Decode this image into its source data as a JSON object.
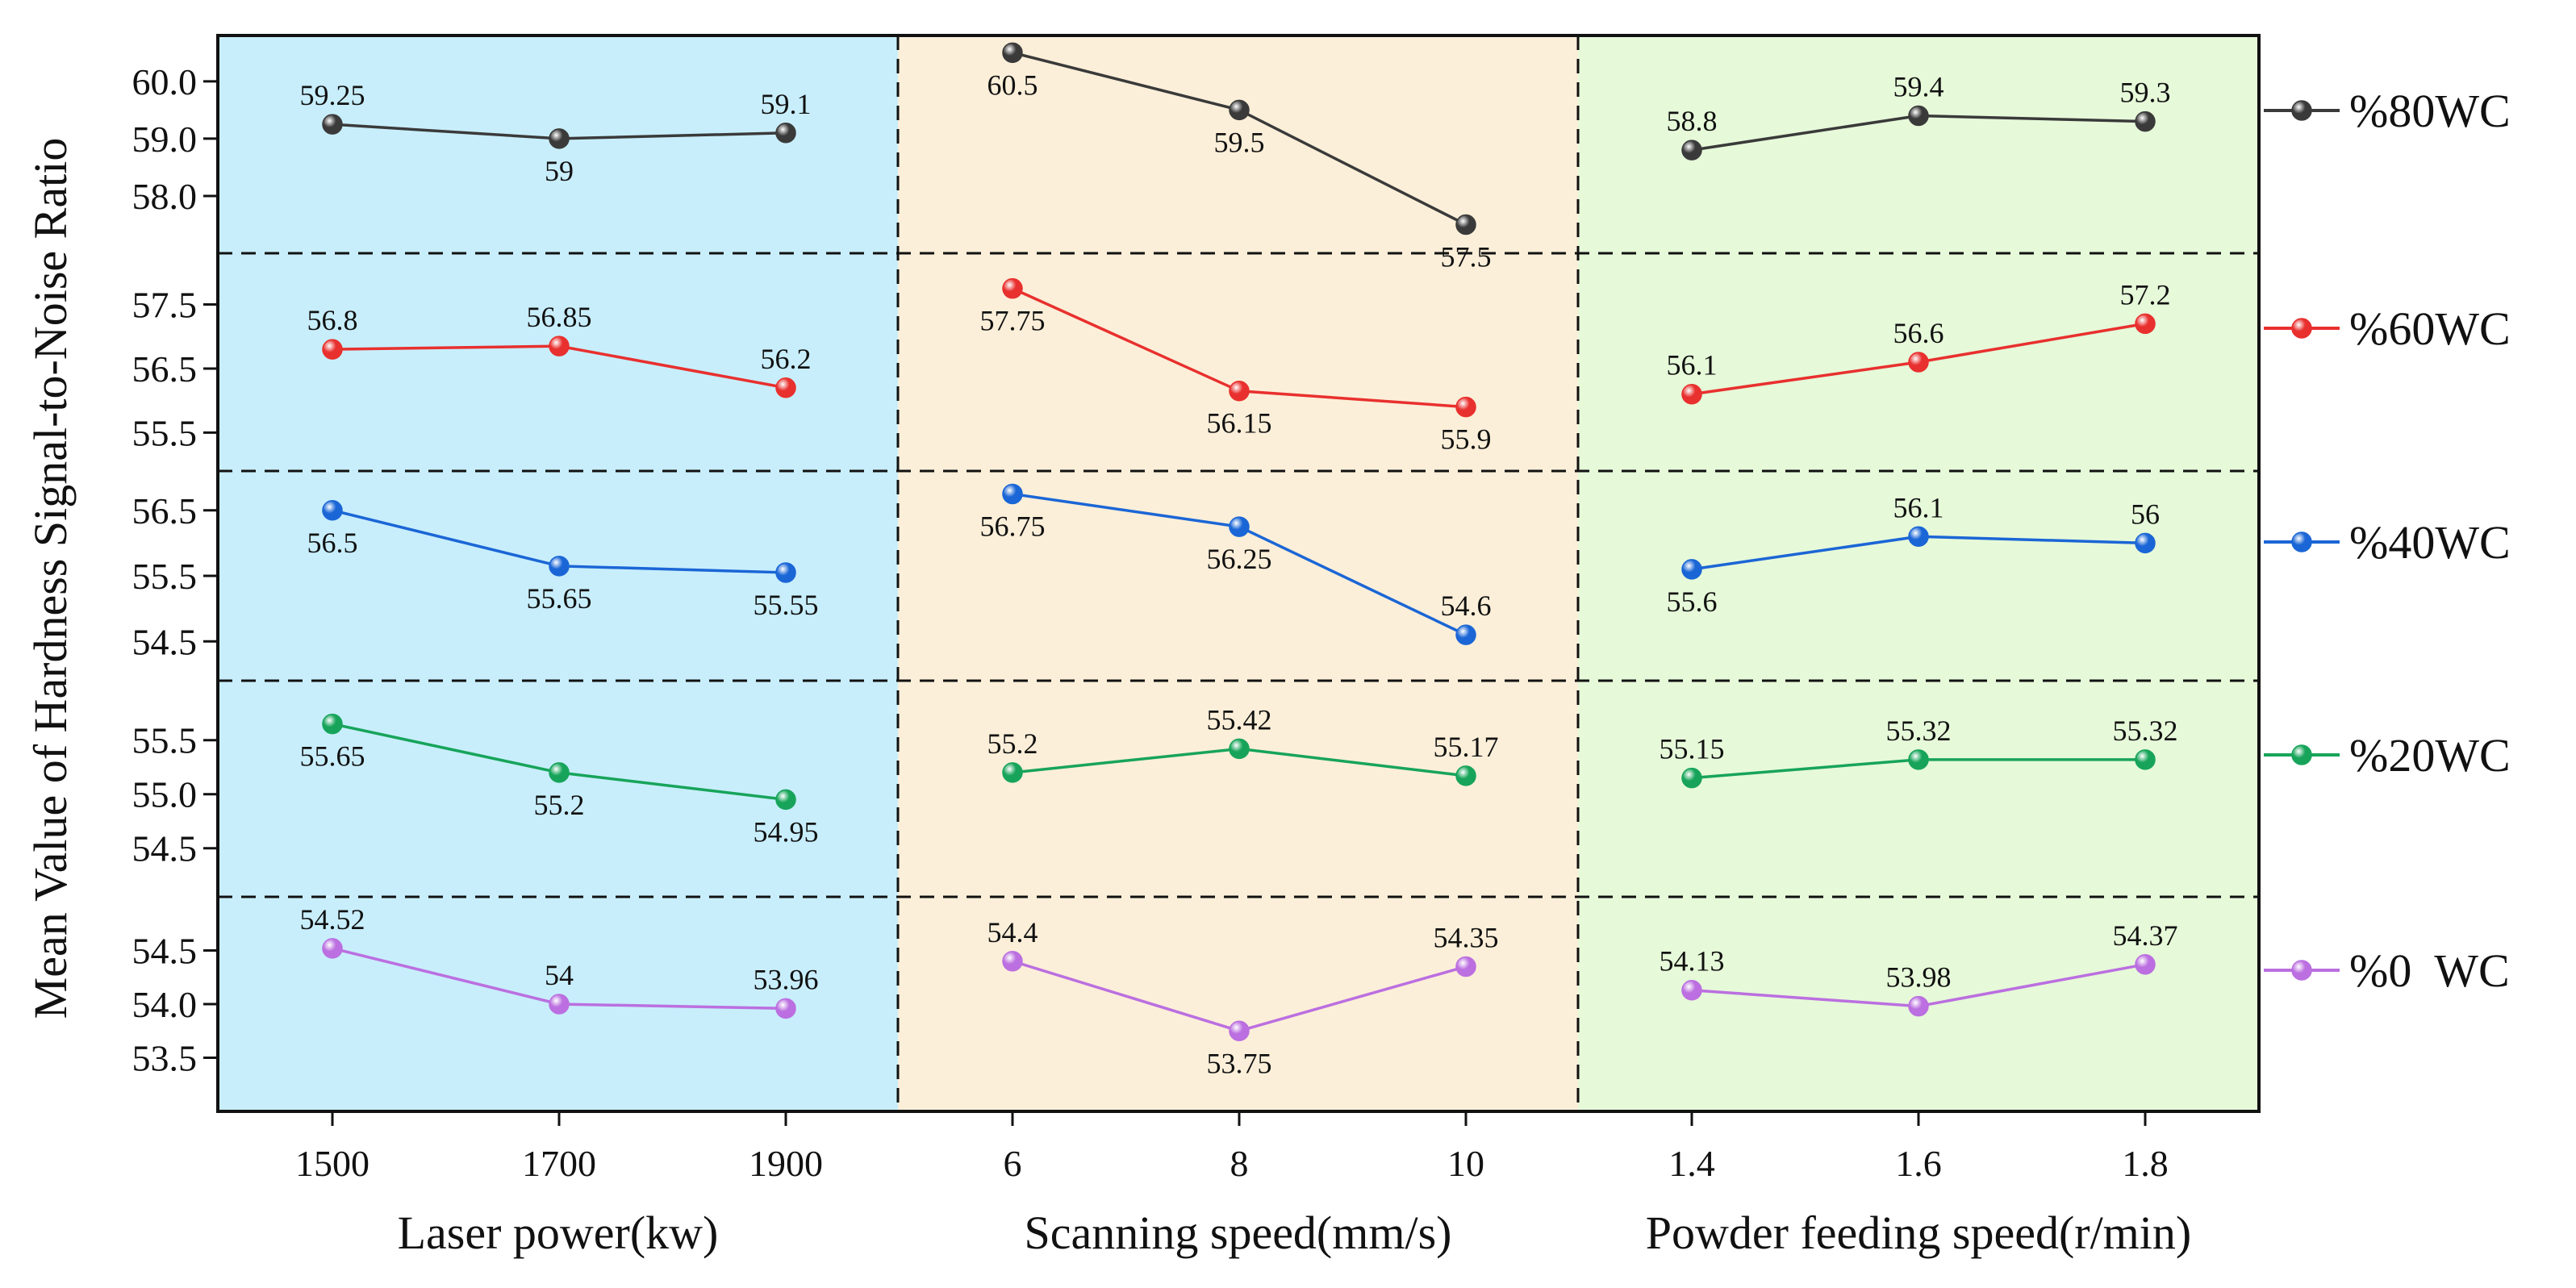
{
  "chart_data": {
    "type": "line",
    "ylabel": "Mean Value of Hardness Signal-to-Noise Ratio",
    "panel_colors": [
      "#c8eefc",
      "#fcefd9",
      "#e6f9d9"
    ],
    "groups": [
      {
        "xlabel": "Laser power(kw)",
        "categories": [
          "1500",
          "1700",
          "1900"
        ]
      },
      {
        "xlabel": "Scanning speed(mm/s)",
        "categories": [
          "6",
          "8",
          "10"
        ]
      },
      {
        "xlabel": "Powder feeding speed(r/min)",
        "categories": [
          "1.4",
          "1.6",
          "1.8"
        ]
      }
    ],
    "series": [
      {
        "name": "%80WC",
        "color": "#3a3a3a",
        "ylim": [
          57.0,
          60.8
        ],
        "yticks": [
          "60.0",
          "59.0",
          "58.0"
        ],
        "values": [
          [
            59.25,
            59.0,
            59.1
          ],
          [
            60.5,
            59.5,
            57.5
          ],
          [
            58.8,
            59.4,
            59.3
          ]
        ],
        "labels": [
          [
            "59.25",
            "59",
            "59.1"
          ],
          [
            "60.5",
            "59.5",
            "57.5"
          ],
          [
            "58.8",
            "59.4",
            "59.3"
          ]
        ]
      },
      {
        "name": "%60WC",
        "color": "#e8302e",
        "ylim": [
          54.9,
          58.3
        ],
        "yticks": [
          "57.5",
          "56.5",
          "55.5"
        ],
        "values": [
          [
            56.8,
            56.85,
            56.2
          ],
          [
            57.75,
            56.15,
            55.9
          ],
          [
            56.1,
            56.6,
            57.2
          ]
        ],
        "labels": [
          [
            "56.8",
            "56.85",
            "56.2"
          ],
          [
            "57.75",
            "56.15",
            "55.9"
          ],
          [
            "56.1",
            "56.6",
            "57.2"
          ]
        ]
      },
      {
        "name": "%40WC",
        "color": "#1b66d6",
        "ylim": [
          53.9,
          57.1
        ],
        "yticks": [
          "56.5",
          "55.5",
          "54.5"
        ],
        "values": [
          [
            56.5,
            55.65,
            55.55
          ],
          [
            56.75,
            56.25,
            54.6
          ],
          [
            55.6,
            56.1,
            56.0
          ]
        ],
        "labels": [
          [
            "56.5",
            "55.65",
            "55.55"
          ],
          [
            "56.75",
            "56.25",
            "54.6"
          ],
          [
            "55.6",
            "56.1",
            "56"
          ]
        ]
      },
      {
        "name": "%20WC",
        "color": "#17a45a",
        "ylim": [
          54.05,
          56.05
        ],
        "yticks": [
          "55.5",
          "55.0",
          "54.5"
        ],
        "values": [
          [
            55.65,
            55.2,
            54.95
          ],
          [
            55.2,
            55.42,
            55.17
          ],
          [
            55.15,
            55.32,
            55.32
          ]
        ],
        "labels": [
          [
            "55.65",
            "55.2",
            "54.95"
          ],
          [
            "55.2",
            "55.42",
            "55.17"
          ],
          [
            "55.15",
            "55.32",
            "55.32"
          ]
        ]
      },
      {
        "name": "%0  WC",
        "color": "#bb6fe0",
        "ylim": [
          53.0,
          55.0
        ],
        "yticks": [
          "54.5",
          "54.0",
          "53.5"
        ],
        "values": [
          [
            54.52,
            54.0,
            53.96
          ],
          [
            54.4,
            53.75,
            54.35
          ],
          [
            54.13,
            53.98,
            54.37
          ]
        ],
        "labels": [
          [
            "54.52",
            "54",
            "53.96"
          ],
          [
            "54.4",
            "53.75",
            "54.35"
          ],
          [
            "54.13",
            "53.98",
            "54.37"
          ]
        ]
      }
    ]
  }
}
